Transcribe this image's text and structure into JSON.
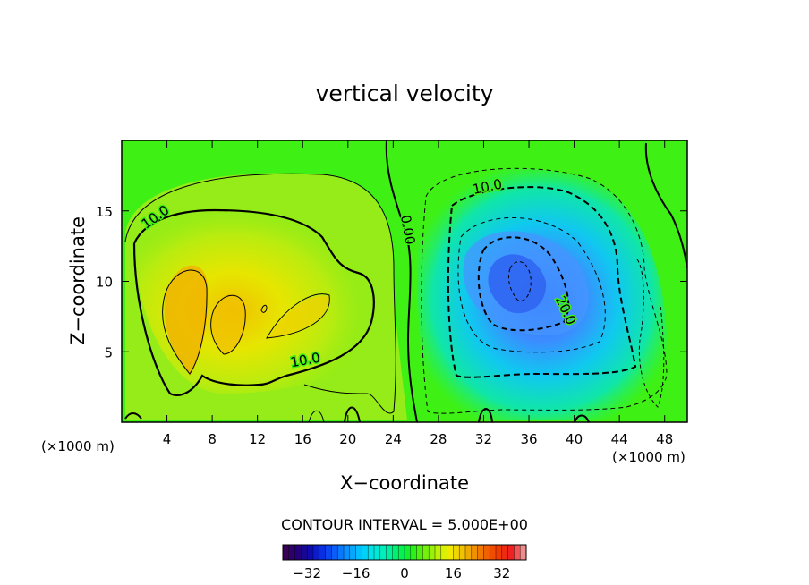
{
  "chart_data": {
    "type": "contour",
    "title": "vertical velocity",
    "xlabel": "X−coordinate",
    "ylabel": "Z−coordinate",
    "x_unit_left": "(×1000 m)",
    "x_unit_right": "(×1000 m)",
    "xlim": [
      0,
      50
    ],
    "ylim": [
      0,
      20
    ],
    "x_ticks": [
      4,
      8,
      12,
      16,
      20,
      24,
      28,
      32,
      36,
      40,
      44,
      48
    ],
    "y_ticks": [
      5,
      10,
      15
    ],
    "contour_interval_text": "CONTOUR INTERVAL = 5.000E+00",
    "contour_labels": [
      {
        "text": "10.0",
        "x": 3.2,
        "y": 14.3,
        "rot": -35
      },
      {
        "text": "0.00",
        "x": 24.9,
        "y": 13.6,
        "rot": 80
      },
      {
        "text": "10.0",
        "x": 16.3,
        "y": 4.1,
        "rot": -10
      },
      {
        "text": "10.0",
        "x": 32.4,
        "y": 16.4,
        "rot": -12
      },
      {
        "text": "20.0",
        "x": 38.9,
        "y": 7.8,
        "rot": 65
      }
    ],
    "positive_cell": {
      "center_x": 15.5,
      "center_z": 9.5,
      "max": 12
    },
    "negative_cell": {
      "center_x": 35,
      "center_z": 10,
      "min": -25
    },
    "colorbar": {
      "range": [
        -40,
        40
      ],
      "tick_labels": [
        "−32",
        "−16",
        "0",
        "16",
        "32"
      ],
      "tick_values": [
        -32,
        -16,
        0,
        16,
        32
      ],
      "colors": [
        "#3a0058",
        "#22007a",
        "#0c0cb2",
        "#0a32e6",
        "#0a64ff",
        "#0a96ff",
        "#00c8ff",
        "#00e6e6",
        "#00f0b4",
        "#00f064",
        "#1cf01c",
        "#64f00a",
        "#b4f00a",
        "#f0f000",
        "#f0c800",
        "#f09600",
        "#f06400",
        "#f03c00",
        "#f01e1e",
        "#f08c8c"
      ]
    }
  }
}
